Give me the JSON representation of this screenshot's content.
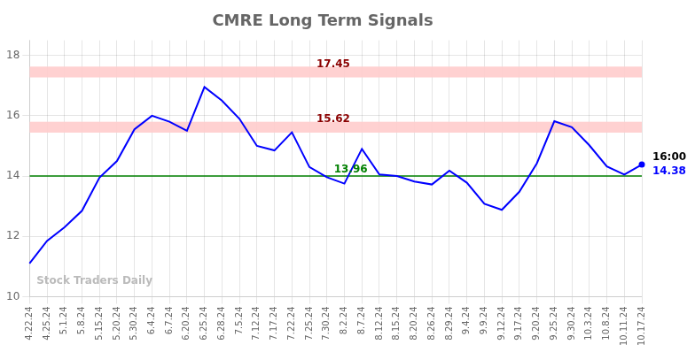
{
  "chart_data": {
    "type": "line",
    "title": "CMRE Long Term Signals",
    "categories": [
      "4.22.24",
      "4.25.24",
      "5.1.24",
      "5.8.24",
      "5.15.24",
      "5.20.24",
      "5.30.24",
      "6.4.24",
      "6.7.24",
      "6.20.24",
      "6.25.24",
      "6.28.24",
      "7.5.24",
      "7.12.24",
      "7.17.24",
      "7.22.24",
      "7.25.24",
      "7.30.24",
      "8.2.24",
      "8.7.24",
      "8.12.24",
      "8.15.24",
      "8.20.24",
      "8.26.24",
      "8.29.24",
      "9.4.24",
      "9.9.24",
      "9.12.24",
      "9.17.24",
      "9.20.24",
      "9.25.24",
      "9.30.24",
      "10.3.24",
      "10.8.24",
      "10.11.24",
      "10.17.24"
    ],
    "values": [
      11.1,
      11.85,
      12.3,
      12.85,
      13.95,
      14.5,
      15.55,
      16.0,
      15.8,
      15.5,
      16.95,
      16.5,
      15.9,
      15.0,
      14.85,
      15.45,
      14.3,
      13.96,
      13.75,
      14.9,
      14.05,
      14.0,
      13.82,
      13.72,
      14.18,
      13.78,
      13.08,
      12.88,
      13.48,
      14.42,
      15.82,
      15.62,
      15.02,
      14.32,
      14.05,
      14.38
    ],
    "color": "blue",
    "ylim": [
      10,
      18.5
    ],
    "yticks": [
      10,
      12,
      14,
      16,
      18
    ],
    "grid": true,
    "hlines": [
      {
        "y": 14,
        "color": "green"
      }
    ],
    "bands": [
      {
        "from": 17.27,
        "to": 17.63,
        "color": "#ffcccc"
      },
      {
        "from": 15.44,
        "to": 15.8,
        "color": "#ffcccc"
      }
    ],
    "annotations": [
      {
        "text": "17.45",
        "x": "7.25.24",
        "y": 17.45,
        "color": "darkred"
      },
      {
        "text": "15.62",
        "x": "7.25.24",
        "y": 15.62,
        "color": "darkred"
      },
      {
        "text": "13.96",
        "x": "7.30.24",
        "y": 13.96,
        "color": "green"
      },
      {
        "text": "16:00",
        "x": "10.17.24",
        "y": 14.38,
        "color": "black"
      },
      {
        "text": "14.38",
        "x": "10.17.24",
        "y": 14.38,
        "color": "blue",
        "marker": "o"
      },
      {
        "text": "Stock Traders Daily",
        "x": "4.22.24",
        "y": 10.25,
        "color": "#bbbbbb"
      }
    ]
  }
}
